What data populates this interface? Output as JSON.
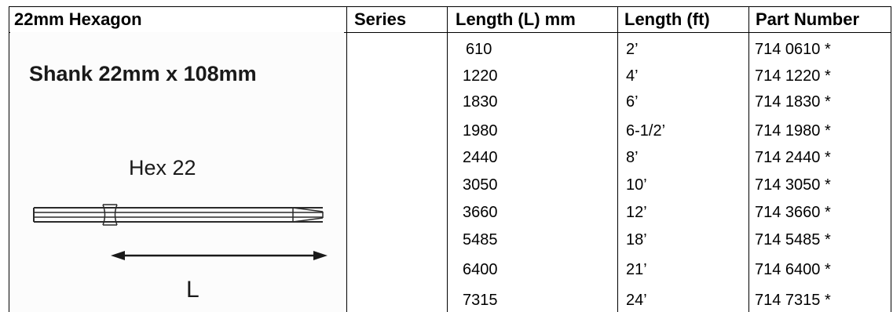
{
  "headers": {
    "product": "22mm Hexagon",
    "series": "Series",
    "length_mm": "Length (L) mm",
    "length_ft": "Length (ft)",
    "part_number": "Part Number"
  },
  "image": {
    "shank_title": "Shank 22mm x 108mm",
    "hex_label": "Hex 22",
    "length_symbol": "L"
  },
  "rows": [
    {
      "mm": "610",
      "ft": "2’",
      "part": "714 0610 *"
    },
    {
      "mm": "1220",
      "ft": "4’",
      "part": "714 1220 *"
    },
    {
      "mm": "1830",
      "ft": "6’",
      "part": "714 1830 *"
    },
    {
      "mm": "1980",
      "ft": "6-1/2’",
      "part": "714 1980 *"
    },
    {
      "mm": "2440",
      "ft": "8’",
      "part": "714 2440 *"
    },
    {
      "mm": "3050",
      "ft": "10’",
      "part": "714 3050 *"
    },
    {
      "mm": "3660",
      "ft": "12’",
      "part": "714 3660 *"
    },
    {
      "mm": "5485",
      "ft": "18’",
      "part": "714 5485 *"
    },
    {
      "mm": "6400",
      "ft": "21’",
      "part": "714 6400 *"
    },
    {
      "mm": "7315",
      "ft": "24’",
      "part": "714 7315 *"
    }
  ]
}
